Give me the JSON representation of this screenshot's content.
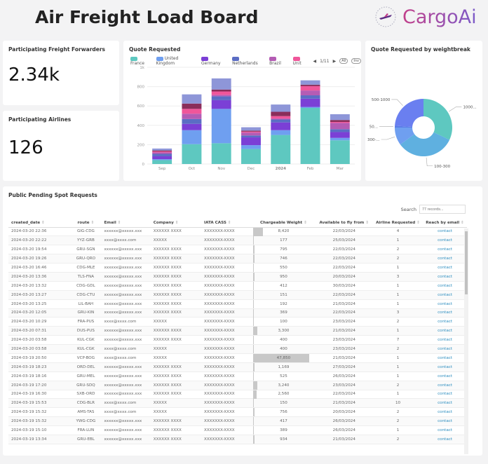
{
  "header": {
    "title": "Air Freight Load Board",
    "logo_text": "CargoAi"
  },
  "kpis": [
    {
      "label": "Participating Freight Forwarders",
      "value": "2.34k"
    },
    {
      "label": "Participating Airlines",
      "value": "126"
    }
  ],
  "chart_data": [
    {
      "type": "bar",
      "stacked": true,
      "title": "Quote Requested",
      "categories": [
        "Sep",
        "Oct",
        "Nov",
        "Dec",
        "2024",
        "Feb",
        "Mar"
      ],
      "ylim": [
        0,
        1000
      ],
      "yticks": [
        "0",
        "200",
        "400",
        "600",
        "800",
        "1k"
      ],
      "grid": true,
      "legend_position": "top",
      "legend_page": "1/11",
      "legend_buttons": [
        "All",
        "Inv"
      ],
      "series": [
        {
          "name": "France",
          "color": "#5ec8c0",
          "values": [
            40,
            205,
            215,
            155,
            300,
            580,
            245
          ]
        },
        {
          "name": "United Kingdom",
          "color": "#6f9ff0",
          "values": [
            10,
            145,
            355,
            40,
            50,
            10,
            25
          ]
        },
        {
          "name": "Germany",
          "color": "#7b3fd6",
          "values": [
            30,
            65,
            90,
            80,
            80,
            85,
            60
          ]
        },
        {
          "name": "Netherlands",
          "color": "#5b6dc4",
          "values": [
            25,
            50,
            40,
            20,
            30,
            35,
            30
          ]
        },
        {
          "name": "Brazil",
          "color": "#b45cb4",
          "values": [
            15,
            55,
            15,
            30,
            10,
            50,
            65
          ]
        },
        {
          "name": "Unit",
          "color": "#f0569a",
          "values": [
            10,
            50,
            35,
            10,
            25,
            45,
            10
          ]
        },
        {
          "color": "#8a2d5a",
          "values": [
            10,
            55,
            20,
            10,
            45,
            15,
            20
          ]
        },
        {
          "color": "#8e96d8",
          "values": [
            20,
            95,
            115,
            35,
            75,
            45,
            60
          ]
        }
      ]
    },
    {
      "type": "pie",
      "donut": true,
      "title": "Quote Requested by weightbreak",
      "categories": [
        "1000...",
        "100-300",
        "300-...",
        "50...",
        "500-1000"
      ],
      "values": [
        32,
        33,
        10,
        1,
        24
      ],
      "colors": [
        "#5ec8c0",
        "#5fb0e0",
        "#6f9ff0",
        "#5a7de8",
        "#6a7ff0"
      ]
    }
  ],
  "table": {
    "title": "Public Pending Spot Requests",
    "search_label": "Search",
    "search_placeholder": "77 records...",
    "columns": [
      "created_date",
      "route",
      "Email",
      "Company",
      "IATA CASS",
      "Chargeable Weight",
      "Available to fly from",
      "Airline Requested",
      "Reach by email"
    ],
    "rows": [
      [
        "2024-03-20 22:36",
        "GIG-CDG",
        "xxxxxx@xxxxx.xxx",
        "XXXXXX XXXX",
        "XXXXXXX-XXXX",
        "8,420",
        "22/03/2024",
        "4",
        "contact"
      ],
      [
        "2024-03-20 22:22",
        "YYZ-GRB",
        "xxxx@xxxx.com",
        "XXXXX",
        "XXXXXXX-XXXX",
        "177",
        "25/03/2024",
        "1",
        "contact"
      ],
      [
        "2024-03-20 19:54",
        "GRU-SGN",
        "xxxxxx@xxxxx.xxx",
        "XXXXXX XXXX",
        "XXXXXXX-XXXX",
        "795",
        "22/03/2024",
        "2",
        "contact"
      ],
      [
        "2024-03-20 19:26",
        "GRU-QRO",
        "xxxxxx@xxxxx.xxx",
        "XXXXXX XXXX",
        "XXXXXXX-XXXX",
        "746",
        "22/03/2024",
        "2",
        "contact"
      ],
      [
        "2024-03-20 16:46",
        "CDG-MLE",
        "xxxxxx@xxxxx.xxx",
        "XXXXXX XXXX",
        "XXXXXXX-XXXX",
        "550",
        "22/03/2024",
        "1",
        "contact"
      ],
      [
        "2024-03-20 13:36",
        "TLS-FNA",
        "xxxxxx@xxxxx.xxx",
        "XXXXXX XXXX",
        "XXXXXXX-XXXX",
        "950",
        "20/03/2024",
        "3",
        "contact"
      ],
      [
        "2024-03-20 13:32",
        "CDG-GDL",
        "xxxxxx@xxxxx.xxx",
        "XXXXXX XXXX",
        "XXXXXXX-XXXX",
        "412",
        "30/03/2024",
        "1",
        "contact"
      ],
      [
        "2024-03-20 13:27",
        "CDG-CTU",
        "xxxxxx@xxxxx.xxx",
        "XXXXXX XXXX",
        "XXXXXXX-XXXX",
        "151",
        "22/03/2024",
        "1",
        "contact"
      ],
      [
        "2024-03-20 13:25",
        "LIL-BAH",
        "xxxxxx@xxxxx.xxx",
        "XXXXXX XXXX",
        "XXXXXXX-XXXX",
        "192",
        "21/03/2024",
        "1",
        "contact"
      ],
      [
        "2024-03-20 12:05",
        "GRU-KIN",
        "xxxxxx@xxxxx.xxx",
        "XXXXXX XXXX",
        "XXXXXXX-XXXX",
        "369",
        "22/03/2024",
        "3",
        "contact"
      ],
      [
        "2024-03-20 10:29",
        "FRA-PUS",
        "xxxx@xxxx.com",
        "XXXXX",
        "XXXXXXX-XXXX",
        "100",
        "23/03/2024",
        "2",
        "contact"
      ],
      [
        "2024-03-20 07:31",
        "DUS-PUS",
        "xxxxxx@xxxxx.xxx",
        "XXXXXX XXXX",
        "XXXXXXX-XXXX",
        "3,300",
        "21/03/2024",
        "1",
        "contact"
      ],
      [
        "2024-03-20 03:58",
        "KUL-CGK",
        "xxxxxx@xxxxx.xxx",
        "XXXXXX XXXX",
        "XXXXXXX-XXXX",
        "400",
        "23/03/2024",
        "7",
        "contact"
      ],
      [
        "2024-03-20 03:58",
        "KUL-CGK",
        "xxxx@xxxx.com",
        "XXXXX",
        "XXXXXXX-XXXX",
        "400",
        "23/03/2024",
        "2",
        "contact"
      ],
      [
        "2024-03-19 20:50",
        "VCP-BOG",
        "xxxx@xxxx.com",
        "XXXXX",
        "XXXXXXX-XXXX",
        "47,850",
        "21/03/2024",
        "1",
        "contact"
      ],
      [
        "2024-03-19 18:23",
        "ORD-DEL",
        "xxxxxx@xxxxx.xxx",
        "XXXXXX XXXX",
        "XXXXXXX-XXXX",
        "1,169",
        "27/03/2024",
        "1",
        "contact"
      ],
      [
        "2024-03-19 18:16",
        "GRU-MEL",
        "xxxxxx@xxxxx.xxx",
        "XXXXXX XXXX",
        "XXXXXXX-XXXX",
        "525",
        "26/03/2024",
        "1",
        "contact"
      ],
      [
        "2024-03-19 17:20",
        "GRU-SDQ",
        "xxxxxx@xxxxx.xxx",
        "XXXXXX XXXX",
        "XXXXXXX-XXXX",
        "3,240",
        "23/03/2024",
        "2",
        "contact"
      ],
      [
        "2024-03-19 16:30",
        "SXB-ORD",
        "xxxxxx@xxxxx.xxx",
        "XXXXXX XXXX",
        "XXXXXXX-XXXX",
        "2,560",
        "22/03/2024",
        "1",
        "contact"
      ],
      [
        "2024-03-19 15:53",
        "CDG-BLR",
        "xxxx@xxxx.com",
        "XXXXX",
        "XXXXXXX-XXXX",
        "150",
        "21/03/2024",
        "10",
        "contact"
      ],
      [
        "2024-03-19 15:32",
        "AMS-TAS",
        "xxxx@xxxx.com",
        "XXXXX",
        "XXXXXXX-XXXX",
        "756",
        "20/03/2024",
        "2",
        "contact"
      ],
      [
        "2024-03-19 15:32",
        "YWG-CDG",
        "xxxxxx@xxxxx.xxx",
        "XXXXXX XXXX",
        "XXXXXXX-XXXX",
        "417",
        "26/03/2024",
        "2",
        "contact"
      ],
      [
        "2024-03-19 15:10",
        "FRA-LUN",
        "xxxxxx@xxxxx.xxx",
        "XXXXXX XXXX",
        "XXXXXXX-XXXX",
        "389",
        "26/03/2024",
        "1",
        "contact"
      ],
      [
        "2024-03-19 13:34",
        "GRU-EBL",
        "xxxxxx@xxxxx.xxx",
        "XXXXXX XXXX",
        "XXXXXXX-XXXX",
        "934",
        "21/03/2024",
        "2",
        "contact"
      ]
    ]
  }
}
